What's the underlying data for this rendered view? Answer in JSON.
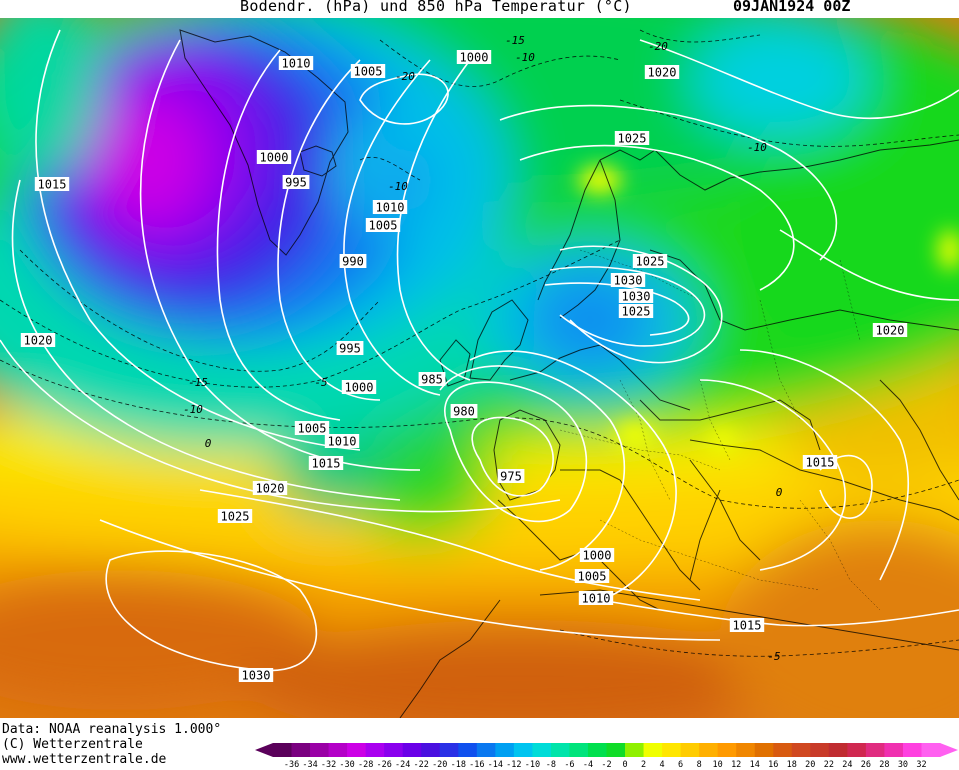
{
  "header": {
    "title": "Bodendr. (hPa) und 850 hPa Temperatur (°C)",
    "datestamp": "09JAN1924 00Z"
  },
  "footer": {
    "credit_line1": "Data: NOAA reanalysis 1.000°",
    "credit_line2": "(C) Wetterzentrale",
    "credit_line3": "www.wetterzentrale.de"
  },
  "pressure_labels": [
    "1010",
    "1005",
    "1000",
    "1020",
    "1025",
    "1000",
    "995",
    "1010",
    "1005",
    "990",
    "1025",
    "1030",
    "1030",
    "1025",
    "1020",
    "1015",
    "995",
    "1000",
    "985",
    "980",
    "1005",
    "1010",
    "1015",
    "975",
    "1020",
    "1025",
    "1020",
    "1015",
    "1000",
    "1005",
    "1010",
    "1015",
    "1030"
  ],
  "temperature_labels": [
    "-15",
    "-10",
    "-20",
    "-20",
    "-10",
    "-10",
    "-15",
    "-10",
    "-5",
    "0",
    "0",
    "-5"
  ],
  "colorbar": {
    "ticks": [
      "-36",
      "-34",
      "-32",
      "-30",
      "-28",
      "-26",
      "-24",
      "-22",
      "-20",
      "-18",
      "-16",
      "-14",
      "-12",
      "-10",
      "-8",
      "-6",
      "-4",
      "-2",
      "0",
      "2",
      "4",
      "6",
      "8",
      "10",
      "12",
      "14",
      "16",
      "18",
      "20",
      "22",
      "24",
      "26",
      "28",
      "30",
      "32"
    ],
    "colors": [
      "#5a005a",
      "#7a0080",
      "#9a00a6",
      "#b400c8",
      "#cc00e6",
      "#aa00f0",
      "#8a00ee",
      "#6a00e8",
      "#4a10e0",
      "#2a30e6",
      "#1050ee",
      "#0a78f0",
      "#00a0f2",
      "#00c4f0",
      "#00dcd8",
      "#00e4aa",
      "#00e47c",
      "#00e04e",
      "#10dc28",
      "#90f000",
      "#f0ff00",
      "#ffe600",
      "#ffcc00",
      "#ffb000",
      "#ff9a00",
      "#f08600",
      "#e07000",
      "#d85a10",
      "#d04820",
      "#c83a28",
      "#c02c30",
      "#d02850",
      "#e02c80",
      "#f030b0",
      "#ff40e0",
      "#ff60f0"
    ]
  }
}
